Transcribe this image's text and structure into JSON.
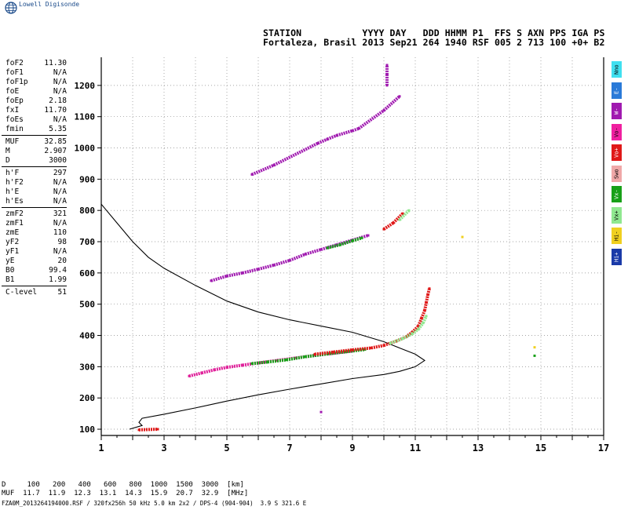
{
  "brand": "Lowell Digisonde",
  "header": {
    "line1": "STATION           YYYY DAY   DDD HHMM P1  FFS S AXN PPS IGA PS",
    "line2": "Fortaleza, Brasil 2013 Sep21 264 1940 RSF 005 2 713 100 +0+ B2"
  },
  "params_group1": [
    {
      "name": "foF2",
      "value": "11.30"
    },
    {
      "name": "foF1",
      "value": "N/A"
    },
    {
      "name": "foF1p",
      "value": "N/A"
    },
    {
      "name": "foE",
      "value": "N/A"
    },
    {
      "name": "foEp",
      "value": "2.18"
    },
    {
      "name": "fxI",
      "value": "11.70"
    },
    {
      "name": "foEs",
      "value": "N/A"
    },
    {
      "name": "fmin",
      "value": "5.35"
    }
  ],
  "params_group2": [
    {
      "name": "MUF",
      "value": "32.85"
    },
    {
      "name": "M",
      "value": "2.907"
    },
    {
      "name": "D",
      "value": "3000"
    }
  ],
  "params_group3": [
    {
      "name": "h'F",
      "value": "297"
    },
    {
      "name": "h'F2",
      "value": "N/A"
    },
    {
      "name": "h'E",
      "value": "N/A"
    },
    {
      "name": "h'Es",
      "value": "N/A"
    }
  ],
  "params_group4": [
    {
      "name": "zmF2",
      "value": "321"
    },
    {
      "name": "zmF1",
      "value": "N/A"
    },
    {
      "name": "zmE",
      "value": "110"
    },
    {
      "name": "yF2",
      "value": "98"
    },
    {
      "name": "yF1",
      "value": "N/A"
    },
    {
      "name": "yE",
      "value": "20"
    },
    {
      "name": "B0",
      "value": "99.4"
    },
    {
      "name": "B1",
      "value": "1.99"
    }
  ],
  "params_group5": [
    {
      "name": "C-level",
      "value": "51"
    }
  ],
  "muf_table": {
    "row1": "D     100   200   400   600   800  1000  1500  3000  [km]",
    "row2": "MUF  11.7  11.9  12.3  13.1  14.3  15.9  20.7  32.9  [MHz]"
  },
  "footer": "FZA0M_2013264194000.RSF / 320fx256h 50 kHz 5.0 km 2x2 / DPS-4 (904-904)  3.9 S 321.6 E",
  "mode_legend": [
    {
      "label": "Nno",
      "color": "#40e0f0"
    },
    {
      "label": "E-",
      "color": "#2a7ad8"
    },
    {
      "label": "W-",
      "color": "#a01ab0"
    },
    {
      "label": "Vo-",
      "color": "#f020a0"
    },
    {
      "label": "Vo+",
      "color": "#e01818"
    },
    {
      "label": "Swo",
      "color": "#f0a8a8"
    },
    {
      "label": "Vx-",
      "color": "#18a018"
    },
    {
      "label": "Vx+",
      "color": "#90e890"
    },
    {
      "label": "Hi-",
      "color": "#f0d020"
    },
    {
      "label": "Hi+",
      "color": "#1a3aa8"
    }
  ],
  "chart_data": {
    "type": "scatter",
    "title": "",
    "xlabel": "",
    "ylabel": "",
    "xlim": [
      1,
      17
    ],
    "ylim": [
      80,
      1290
    ],
    "x_ticks": [
      1,
      3,
      5,
      7,
      9,
      11,
      13,
      15,
      17
    ],
    "y_ticks": [
      100,
      200,
      300,
      400,
      500,
      600,
      700,
      800,
      900,
      1000,
      1100,
      1200
    ],
    "grid": true,
    "series": [
      {
        "color": "#e0209a",
        "points": [
          [
            3.8,
            270
          ],
          [
            4.2,
            280
          ],
          [
            4.6,
            290
          ],
          [
            5.0,
            298
          ],
          [
            5.5,
            305
          ],
          [
            6.0,
            312
          ],
          [
            6.6,
            320
          ],
          [
            7.2,
            328
          ],
          [
            7.8,
            336
          ],
          [
            8.4,
            343
          ],
          [
            9.0,
            350
          ]
        ]
      },
      {
        "color": "#18a018",
        "points": [
          [
            5.8,
            310
          ],
          [
            6.3,
            315
          ],
          [
            6.9,
            322
          ],
          [
            7.5,
            332
          ],
          [
            8.2,
            341
          ],
          [
            8.8,
            348
          ],
          [
            9.4,
            355
          ]
        ]
      },
      {
        "color": "#e01818",
        "points": [
          [
            7.8,
            340
          ],
          [
            8.4,
            347
          ],
          [
            9.0,
            354
          ],
          [
            9.6,
            360
          ],
          [
            10.0,
            368
          ],
          [
            10.4,
            382
          ],
          [
            10.7,
            395
          ],
          [
            10.9,
            410
          ],
          [
            11.1,
            430
          ],
          [
            11.2,
            455
          ],
          [
            11.3,
            480
          ],
          [
            11.35,
            505
          ],
          [
            11.4,
            530
          ],
          [
            11.45,
            550
          ]
        ]
      },
      {
        "color": "#90e890",
        "points": [
          [
            10.2,
            375
          ],
          [
            10.6,
            390
          ],
          [
            10.9,
            405
          ],
          [
            11.1,
            420
          ],
          [
            11.25,
            440
          ],
          [
            11.35,
            462
          ]
        ]
      },
      {
        "color": "#a01ab0",
        "points": [
          [
            4.5,
            575
          ],
          [
            5.0,
            590
          ],
          [
            5.5,
            600
          ],
          [
            6.0,
            612
          ],
          [
            6.5,
            625
          ],
          [
            7.0,
            640
          ],
          [
            7.5,
            660
          ],
          [
            8.0,
            675
          ],
          [
            8.5,
            690
          ],
          [
            9.0,
            705
          ],
          [
            9.5,
            720
          ]
        ]
      },
      {
        "color": "#18a018",
        "points": [
          [
            8.2,
            680
          ],
          [
            8.6,
            690
          ],
          [
            9.0,
            703
          ],
          [
            9.3,
            712
          ]
        ]
      },
      {
        "color": "#e01818",
        "points": [
          [
            10.0,
            740
          ],
          [
            10.3,
            760
          ],
          [
            10.6,
            790
          ]
        ]
      },
      {
        "color": "#90e890",
        "points": [
          [
            10.5,
            770
          ],
          [
            10.8,
            800
          ]
        ]
      },
      {
        "color": "#a01ab0",
        "points": [
          [
            5.8,
            915
          ],
          [
            6.5,
            945
          ],
          [
            7.9,
            1015
          ],
          [
            8.2,
            1028
          ],
          [
            8.5,
            1040
          ],
          [
            9.0,
            1055
          ],
          [
            9.2,
            1062
          ],
          [
            10.0,
            1120
          ],
          [
            10.5,
            1165
          ]
        ]
      },
      {
        "color": "#f0d020",
        "points": [
          [
            12.5,
            715
          ],
          [
            14.8,
            362
          ]
        ]
      },
      {
        "color": "#18a018",
        "points": [
          [
            14.8,
            335
          ]
        ]
      },
      {
        "color": "#e01818",
        "points": [
          [
            2.2,
            98
          ],
          [
            2.8,
            100
          ]
        ]
      },
      {
        "color": "#a01ab0",
        "points": [
          [
            10.1,
            1200
          ],
          [
            10.1,
            1235
          ],
          [
            10.1,
            1265
          ],
          [
            8.0,
            155
          ]
        ]
      }
    ],
    "profile": {
      "color": "#000000",
      "points": [
        [
          1,
          820
        ],
        [
          1.5,
          760
        ],
        [
          2,
          700
        ],
        [
          2.5,
          650
        ],
        [
          3,
          615
        ],
        [
          4,
          560
        ],
        [
          5,
          510
        ],
        [
          6,
          475
        ],
        [
          7,
          450
        ],
        [
          8,
          430
        ],
        [
          9,
          410
        ],
        [
          10,
          380
        ],
        [
          10.5,
          360
        ],
        [
          11,
          340
        ],
        [
          11.3,
          320
        ],
        [
          11,
          300
        ],
        [
          10.5,
          285
        ],
        [
          10,
          275
        ],
        [
          9,
          262
        ],
        [
          8,
          245
        ],
        [
          7,
          228
        ],
        [
          6,
          210
        ],
        [
          5,
          190
        ],
        [
          4,
          168
        ],
        [
          3,
          148
        ],
        [
          2.3,
          135
        ],
        [
          2.2,
          122
        ],
        [
          2.3,
          112
        ],
        [
          1.9,
          100
        ]
      ]
    }
  }
}
